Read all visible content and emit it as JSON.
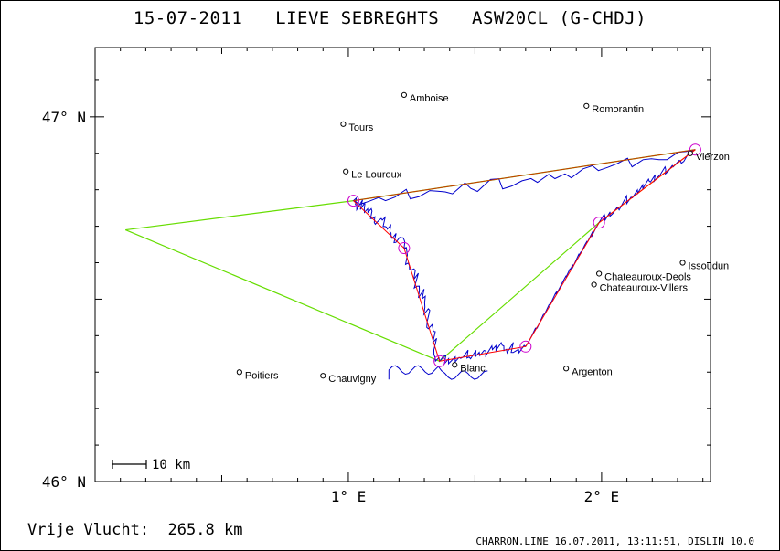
{
  "title": {
    "date": "15-07-2011",
    "pilot": "LIEVE SEBREGHTS",
    "glider": "ASW20CL (G-CHDJ)"
  },
  "axes": {
    "lat_ticks": [
      {
        "value": 47.0,
        "label": "47° N"
      },
      {
        "value": 46.0,
        "label": "46° N"
      }
    ],
    "lon_ticks": [
      {
        "value": 1.0,
        "label": "1° E"
      },
      {
        "value": 2.0,
        "label": "2° E"
      }
    ],
    "lon_range": [
      0.0,
      2.43
    ],
    "lat_range": [
      46.0,
      47.19
    ]
  },
  "scale_bar": {
    "label": "10 km"
  },
  "towns": [
    {
      "name": "Amboise",
      "lon": 1.22,
      "lat": 47.06
    },
    {
      "name": "Romorantin",
      "lon": 1.94,
      "lat": 47.03
    },
    {
      "name": "Tours",
      "lon": 0.98,
      "lat": 46.98
    },
    {
      "name": "Vierzon",
      "lon": 2.35,
      "lat": 46.9
    },
    {
      "name": "Le Louroux",
      "lon": 0.99,
      "lat": 46.85
    },
    {
      "name": "Issoudun",
      "lon": 2.32,
      "lat": 46.6
    },
    {
      "name": "Chateauroux-Deols",
      "lon": 1.99,
      "lat": 46.57
    },
    {
      "name": "Chateauroux-Villers",
      "lon": 1.97,
      "lat": 46.54
    },
    {
      "name": "Blanc",
      "lon": 1.42,
      "lat": 46.32
    },
    {
      "name": "Argenton",
      "lon": 1.86,
      "lat": 46.31
    },
    {
      "name": "Poitiers",
      "lon": 0.57,
      "lat": 46.3
    },
    {
      "name": "Chauvigny",
      "lon": 0.9,
      "lat": 46.29
    }
  ],
  "turnpoints": [
    {
      "lon": 1.02,
      "lat": 46.77
    },
    {
      "lon": 1.22,
      "lat": 46.64
    },
    {
      "lon": 1.36,
      "lat": 46.33
    },
    {
      "lon": 1.7,
      "lat": 46.37
    },
    {
      "lon": 1.99,
      "lat": 46.71
    },
    {
      "lon": 2.37,
      "lat": 46.91
    }
  ],
  "free_flight_triangle": [
    {
      "lon": 0.12,
      "lat": 46.69
    },
    {
      "lon": 1.36,
      "lat": 46.33
    },
    {
      "lon": 1.99,
      "lat": 46.71
    },
    {
      "lon": 2.37,
      "lat": 46.91
    },
    {
      "lon": 1.02,
      "lat": 46.77
    },
    {
      "lon": 0.12,
      "lat": 46.69
    }
  ],
  "task_route": [
    {
      "lon": 2.37,
      "lat": 46.91
    },
    {
      "lon": 1.02,
      "lat": 46.77
    },
    {
      "lon": 1.22,
      "lat": 46.64
    },
    {
      "lon": 1.36,
      "lat": 46.33
    },
    {
      "lon": 1.7,
      "lat": 46.37
    },
    {
      "lon": 1.99,
      "lat": 46.71
    },
    {
      "lon": 2.37,
      "lat": 46.91
    }
  ],
  "colors": {
    "track": "#0000cc",
    "route": "#ff0000",
    "triangle_green": "#66dd00",
    "triangle_orange": "#ff8800",
    "turnpoint_ring": "#cc00cc"
  },
  "footer": {
    "free_flight_label": "Vrije Vlucht:",
    "free_flight_value": "265.8 km",
    "credits": "CHARRON.LINE 16.07.2011, 13:11:51, DISLIN 10.0"
  }
}
